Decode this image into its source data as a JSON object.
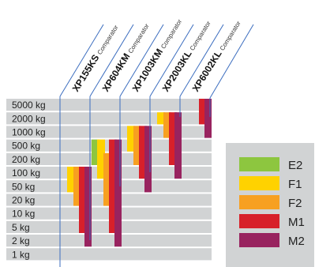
{
  "chart_data": {
    "type": "range-bar",
    "y_axis": {
      "scale": "log",
      "tick_labels": [
        "5000 kg",
        "2000 kg",
        "1000 kg",
        "500 kg",
        "200 kg",
        "100 kg",
        "50 kg",
        "20 kg",
        "10 kg",
        "5 kg",
        "2 kg",
        "1 kg"
      ],
      "ticks_kg": [
        5000,
        2000,
        1000,
        500,
        200,
        100,
        50,
        20,
        10,
        5,
        2,
        1
      ]
    },
    "categories": [
      {
        "name": "XP155KS",
        "suffix": "Comparator"
      },
      {
        "name": "XP604KM",
        "suffix": "Comparator"
      },
      {
        "name": "XP1003KM",
        "suffix": "Comparator"
      },
      {
        "name": "XP2003KL",
        "suffix": "Comparator"
      },
      {
        "name": "XP6002KL",
        "suffix": "Comparator"
      }
    ],
    "legend": {
      "placement": "right",
      "entries": [
        {
          "class": "E2",
          "color": "#8dc63f"
        },
        {
          "class": "F1",
          "color": "#ffd200"
        },
        {
          "class": "F2",
          "color": "#f7a021"
        },
        {
          "class": "M1",
          "color": "#d7202a"
        },
        {
          "class": "M2",
          "color": "#98235f"
        }
      ]
    },
    "series": [
      {
        "name": "E2",
        "ranges_kg": [
          null,
          [
            200,
            500
          ],
          null,
          null,
          null
        ]
      },
      {
        "name": "F1",
        "ranges_kg": [
          [
            50,
            100
          ],
          [
            100,
            500
          ],
          [
            500,
            1000
          ],
          [
            2000,
            2000
          ],
          null
        ]
      },
      {
        "name": "F2",
        "ranges_kg": [
          [
            20,
            100
          ],
          [
            20,
            200
          ],
          [
            200,
            1000
          ],
          [
            1000,
            2000
          ],
          null
        ]
      },
      {
        "name": "M1",
        "ranges_kg": [
          [
            5,
            100
          ],
          [
            5,
            500
          ],
          [
            100,
            1000
          ],
          [
            200,
            2000
          ],
          [
            2000,
            5000
          ]
        ],
        "note": ""
      },
      {
        "name": "M2",
        "ranges_kg": [
          [
            2,
            100
          ],
          [
            2,
            500
          ],
          [
            50,
            1000
          ],
          [
            100,
            2000
          ],
          [
            1000,
            5000
          ]
        ]
      }
    ]
  }
}
